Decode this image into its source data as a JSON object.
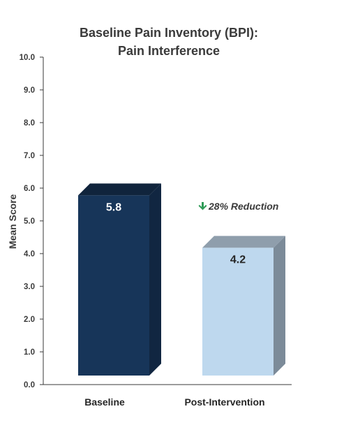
{
  "chart_data": {
    "type": "bar",
    "title": [
      "Baseline Pain Inventory (BPI):",
      "Pain Interference"
    ],
    "ylabel": "Mean Score",
    "xlabel": "",
    "ylim": [
      0,
      10
    ],
    "yticks": [
      "0.0",
      "1.0",
      "2.0",
      "3.0",
      "4.0",
      "5.0",
      "6.0",
      "7.0",
      "8.0",
      "9.0",
      "10.0"
    ],
    "categories": [
      "Baseline",
      "Post-Intervention"
    ],
    "values": [
      5.8,
      4.2
    ],
    "data_labels": [
      "5.8",
      "4.2"
    ],
    "colors": {
      "bar_front": [
        "#173559",
        "#bed8ee"
      ],
      "bar_side": [
        "#112641",
        "#7c8b99"
      ],
      "bar_top": [
        "#10243c",
        "#8f9eac"
      ],
      "value_text": [
        "#ffffff",
        "#262626"
      ],
      "accent_arrow": "#2e9b57"
    },
    "annotation": {
      "text": "28% Reduction",
      "icon": "down-arrow-icon"
    },
    "grid": false,
    "legend": "none",
    "style": "3d-column"
  }
}
